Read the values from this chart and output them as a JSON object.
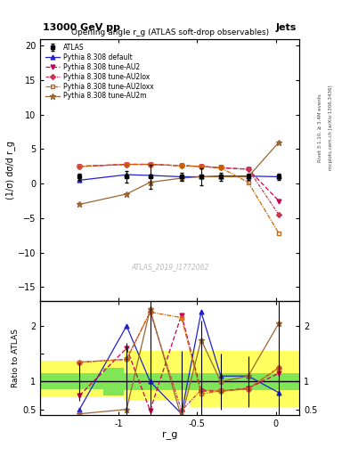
{
  "title_left": "13000 GeV pp",
  "title_right": "Jets",
  "plot_title": "Opening angle r_g (ATLAS soft-drop observables)",
  "ylabel_main": "(1/σ) dσ/d r_g",
  "ylabel_ratio": "Ratio to ATLAS",
  "xlabel": "r_g",
  "watermark": "ATLAS_2019_I1772062",
  "right_label1": "Rivet 3.1.10, ≥ 3.4M events",
  "right_label2": "mcplots.cern.ch [arXiv:1306.3436]",
  "xlim": [
    -1.5,
    0.15
  ],
  "ylim_main": [
    -17,
    21
  ],
  "ylim_ratio": [
    0.4,
    2.45
  ],
  "x": [
    -1.25,
    -0.95,
    -0.8,
    -0.6,
    -0.475,
    -0.35,
    -0.175,
    0.02
  ],
  "atlas_main": [
    1.0,
    1.0,
    1.0,
    1.0,
    1.0,
    1.0,
    1.0,
    1.0
  ],
  "atlas_main_err": [
    0.4,
    0.8,
    1.8,
    0.6,
    1.2,
    0.6,
    0.5,
    0.4
  ],
  "default_main": [
    0.5,
    1.3,
    1.2,
    1.0,
    1.0,
    1.1,
    1.1,
    1.0
  ],
  "au2_main": [
    2.5,
    2.8,
    2.8,
    2.6,
    2.5,
    2.3,
    2.1,
    -2.5
  ],
  "au2lox_main": [
    2.5,
    2.8,
    2.8,
    2.6,
    2.5,
    2.3,
    2.1,
    -4.5
  ],
  "au2loxx_main": [
    2.5,
    2.8,
    2.8,
    2.6,
    2.5,
    2.3,
    0.2,
    -7.2
  ],
  "au2m_main": [
    -3.0,
    -1.5,
    0.2,
    0.8,
    1.0,
    1.0,
    1.0,
    6.0
  ],
  "default_ratio": [
    0.5,
    2.0,
    1.0,
    0.42,
    2.25,
    1.1,
    1.1,
    0.8
  ],
  "au2_ratio": [
    0.75,
    1.6,
    0.48,
    2.2,
    0.83,
    0.83,
    0.88,
    1.15
  ],
  "au2lox_ratio": [
    1.35,
    1.4,
    2.25,
    0.48,
    0.85,
    0.83,
    0.87,
    1.25
  ],
  "au2loxx_ratio": [
    1.35,
    1.4,
    2.25,
    2.15,
    0.78,
    0.83,
    0.87,
    1.25
  ],
  "au2m_ratio": [
    0.42,
    0.5,
    2.3,
    0.35,
    1.75,
    1.0,
    1.1,
    2.05
  ],
  "atlas_ratio_err": [
    0.35,
    0.7,
    1.5,
    0.55,
    1.1,
    0.5,
    0.45,
    15.0
  ],
  "yellow_band_x": [
    -1.5,
    -1.1,
    -1.1,
    -0.97,
    -0.97,
    -0.72,
    -0.72,
    -0.55,
    -0.55,
    0.15
  ],
  "yellow_band_lo": [
    0.72,
    0.72,
    0.72,
    0.72,
    0.65,
    0.65,
    0.65,
    0.65,
    0.55,
    0.55
  ],
  "yellow_band_hi": [
    1.38,
    1.38,
    1.38,
    1.38,
    1.55,
    1.55,
    1.55,
    1.55,
    1.55,
    1.55
  ],
  "green_band_x": [
    -1.5,
    -1.1,
    -1.1,
    -0.97,
    -0.97,
    0.15
  ],
  "green_band_lo": [
    0.87,
    0.87,
    0.75,
    0.75,
    0.85,
    0.85
  ],
  "green_band_hi": [
    1.15,
    1.15,
    1.25,
    1.25,
    1.15,
    1.15
  ],
  "col_default": "#2222cc",
  "col_au2": "#cc0055",
  "col_au2lox": "#cc3355",
  "col_au2loxx": "#cc6600",
  "col_au2m": "#996633"
}
